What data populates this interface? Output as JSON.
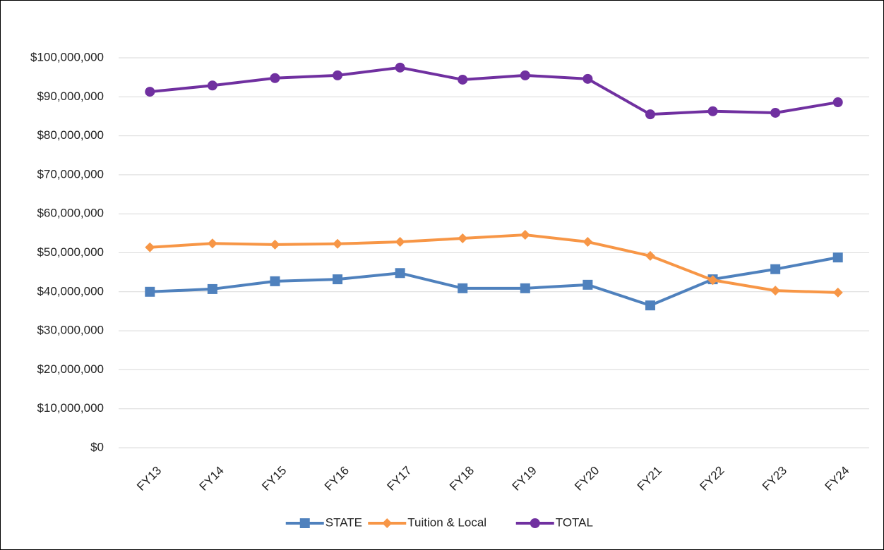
{
  "chart_data": {
    "type": "line",
    "categories": [
      "FY13",
      "FY14",
      "FY15",
      "FY16",
      "FY17",
      "FY18",
      "FY19",
      "FY20",
      "FY21",
      "FY22",
      "FY23",
      "FY24"
    ],
    "series": [
      {
        "name": "STATE",
        "color": "#4f81bd",
        "marker": "square",
        "values": [
          40000000,
          40700000,
          42700000,
          43200000,
          44800000,
          40900000,
          40900000,
          41800000,
          36500000,
          43200000,
          45800000,
          48800000
        ]
      },
      {
        "name": "Tuition & Local",
        "color": "#f79646",
        "marker": "diamond",
        "values": [
          51400000,
          52400000,
          52100000,
          52300000,
          52800000,
          53700000,
          54600000,
          52800000,
          49200000,
          43000000,
          40300000,
          39800000
        ]
      },
      {
        "name": "TOTAL",
        "color": "#7030a0",
        "marker": "circle",
        "values": [
          91300000,
          92900000,
          94800000,
          95500000,
          97500000,
          94400000,
          95500000,
          94600000,
          85500000,
          86300000,
          85900000,
          88600000
        ]
      }
    ],
    "ylim": [
      0,
      100000000
    ],
    "yticks": [
      {
        "value": 0,
        "label": "$0"
      },
      {
        "value": 10000000,
        "label": "$10,000,000"
      },
      {
        "value": 20000000,
        "label": "$20,000,000"
      },
      {
        "value": 30000000,
        "label": "$30,000,000"
      },
      {
        "value": 40000000,
        "label": "$40,000,000"
      },
      {
        "value": 50000000,
        "label": "$50,000,000"
      },
      {
        "value": 60000000,
        "label": "$60,000,000"
      },
      {
        "value": 70000000,
        "label": "$70,000,000"
      },
      {
        "value": 80000000,
        "label": "$80,000,000"
      },
      {
        "value": 90000000,
        "label": "$90,000,000"
      },
      {
        "value": 100000000,
        "label": "$100,000,000"
      }
    ],
    "grid": true,
    "legend": "bottom"
  }
}
